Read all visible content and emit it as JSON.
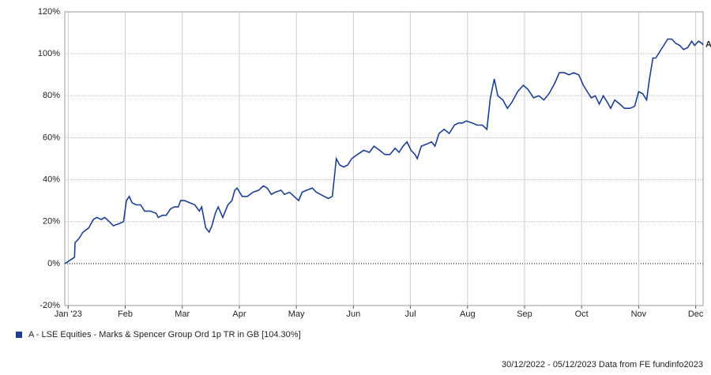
{
  "chart_data": {
    "type": "line",
    "x": [
      -0.06,
      0.11,
      0.12,
      0.19,
      0.26,
      0.36,
      0.44,
      0.5,
      0.58,
      0.64,
      0.72,
      0.79,
      0.89,
      0.97,
      1.02,
      1.07,
      1.12,
      1.19,
      1.27,
      1.34,
      1.44,
      1.54,
      1.58,
      1.65,
      1.72,
      1.79,
      1.86,
      1.93,
      1.97,
      2.04,
      2.13,
      2.22,
      2.3,
      2.34,
      2.41,
      2.47,
      2.52,
      2.58,
      2.63,
      2.71,
      2.8,
      2.87,
      2.92,
      2.96,
      3.05,
      3.14,
      3.24,
      3.34,
      3.42,
      3.49,
      3.56,
      3.63,
      3.73,
      3.79,
      3.88,
      3.96,
      4.04,
      4.1,
      4.18,
      4.28,
      4.35,
      4.42,
      4.49,
      4.56,
      4.63,
      4.7,
      4.76,
      4.83,
      4.9,
      4.97,
      5.07,
      5.18,
      5.28,
      5.36,
      5.46,
      5.55,
      5.64,
      5.73,
      5.8,
      5.87,
      5.94,
      6.01,
      6.08,
      6.12,
      6.19,
      6.29,
      6.37,
      6.43,
      6.5,
      6.59,
      6.68,
      6.77,
      6.84,
      6.91,
      6.98,
      7.08,
      7.17,
      7.26,
      7.34,
      7.4,
      7.47,
      7.53,
      7.62,
      7.7,
      7.78,
      7.88,
      7.98,
      8.06,
      8.16,
      8.25,
      8.34,
      8.43,
      8.53,
      8.61,
      8.7,
      8.78,
      8.86,
      8.95,
      9.03,
      9.1,
      9.17,
      9.24,
      9.31,
      9.38,
      9.45,
      9.51,
      9.58,
      9.67,
      9.75,
      9.85,
      9.93,
      10.0,
      10.07,
      10.14,
      10.19,
      10.25,
      10.3,
      10.37,
      10.44,
      10.51,
      10.58,
      10.65,
      10.72,
      10.79,
      10.86,
      10.93,
      10.98,
      11.05,
      11.11,
      11.13
    ],
    "series": [
      {
        "name": "A - LSE Equities - Marks & Spencer Group Ord 1p TR in GB [104.30%]",
        "color": "#1c3f94",
        "values": [
          0,
          3,
          10,
          12,
          15,
          17,
          21,
          22,
          21,
          22,
          20,
          18,
          19,
          20,
          30,
          32,
          29,
          28,
          28,
          25,
          25,
          24,
          22,
          23,
          23,
          26,
          27,
          27,
          30,
          30,
          29,
          28,
          25,
          27,
          17,
          15,
          18,
          24,
          27,
          22,
          28,
          30,
          35,
          36,
          32,
          32,
          34,
          35,
          37,
          36,
          33,
          34,
          35,
          33,
          34,
          32,
          30,
          34,
          35,
          36,
          34,
          33,
          32,
          31,
          32,
          50,
          47,
          46,
          47,
          50,
          52,
          54,
          53,
          56,
          54,
          52,
          52,
          55,
          53,
          56,
          58,
          54,
          52,
          50,
          56,
          57,
          58,
          56,
          62,
          64,
          62,
          66,
          67,
          67,
          68,
          67,
          66,
          66,
          64,
          79,
          88,
          80,
          78,
          74,
          77,
          82,
          85,
          83,
          79,
          80,
          78,
          81,
          86,
          91,
          91,
          90,
          91,
          90,
          85,
          82,
          79,
          80,
          76,
          80,
          77,
          74,
          78,
          76,
          74,
          74,
          75,
          82,
          81,
          78,
          88,
          98,
          98,
          101,
          104,
          107,
          107,
          105,
          104,
          102,
          103,
          106,
          104,
          106,
          105,
          104.3
        ]
      }
    ],
    "end_label": "A",
    "xlim": [
      -0.06,
      11.13
    ],
    "xticks": [
      {
        "value": 0,
        "label": "Jan '23"
      },
      {
        "value": 1,
        "label": "Feb"
      },
      {
        "value": 2,
        "label": "Mar"
      },
      {
        "value": 3,
        "label": "Apr"
      },
      {
        "value": 4,
        "label": "May"
      },
      {
        "value": 5,
        "label": "Jun"
      },
      {
        "value": 6,
        "label": "Jul"
      },
      {
        "value": 7,
        "label": "Aug"
      },
      {
        "value": 8,
        "label": "Sep"
      },
      {
        "value": 9,
        "label": "Oct"
      },
      {
        "value": 10,
        "label": "Nov"
      },
      {
        "value": 11,
        "label": "Dec"
      }
    ],
    "ylim": [
      -20,
      120
    ],
    "yticks": [
      {
        "value": -20,
        "label": "-20%"
      },
      {
        "value": 0,
        "label": "0%"
      },
      {
        "value": 20,
        "label": "20%"
      },
      {
        "value": 40,
        "label": "40%"
      },
      {
        "value": 60,
        "label": "60%"
      },
      {
        "value": 80,
        "label": "80%"
      },
      {
        "value": 100,
        "label": "100%"
      },
      {
        "value": 120,
        "label": "120%"
      }
    ],
    "grid": true,
    "footer": "30/12/2022 - 05/12/2023 Data from FE fundinfo2023"
  }
}
